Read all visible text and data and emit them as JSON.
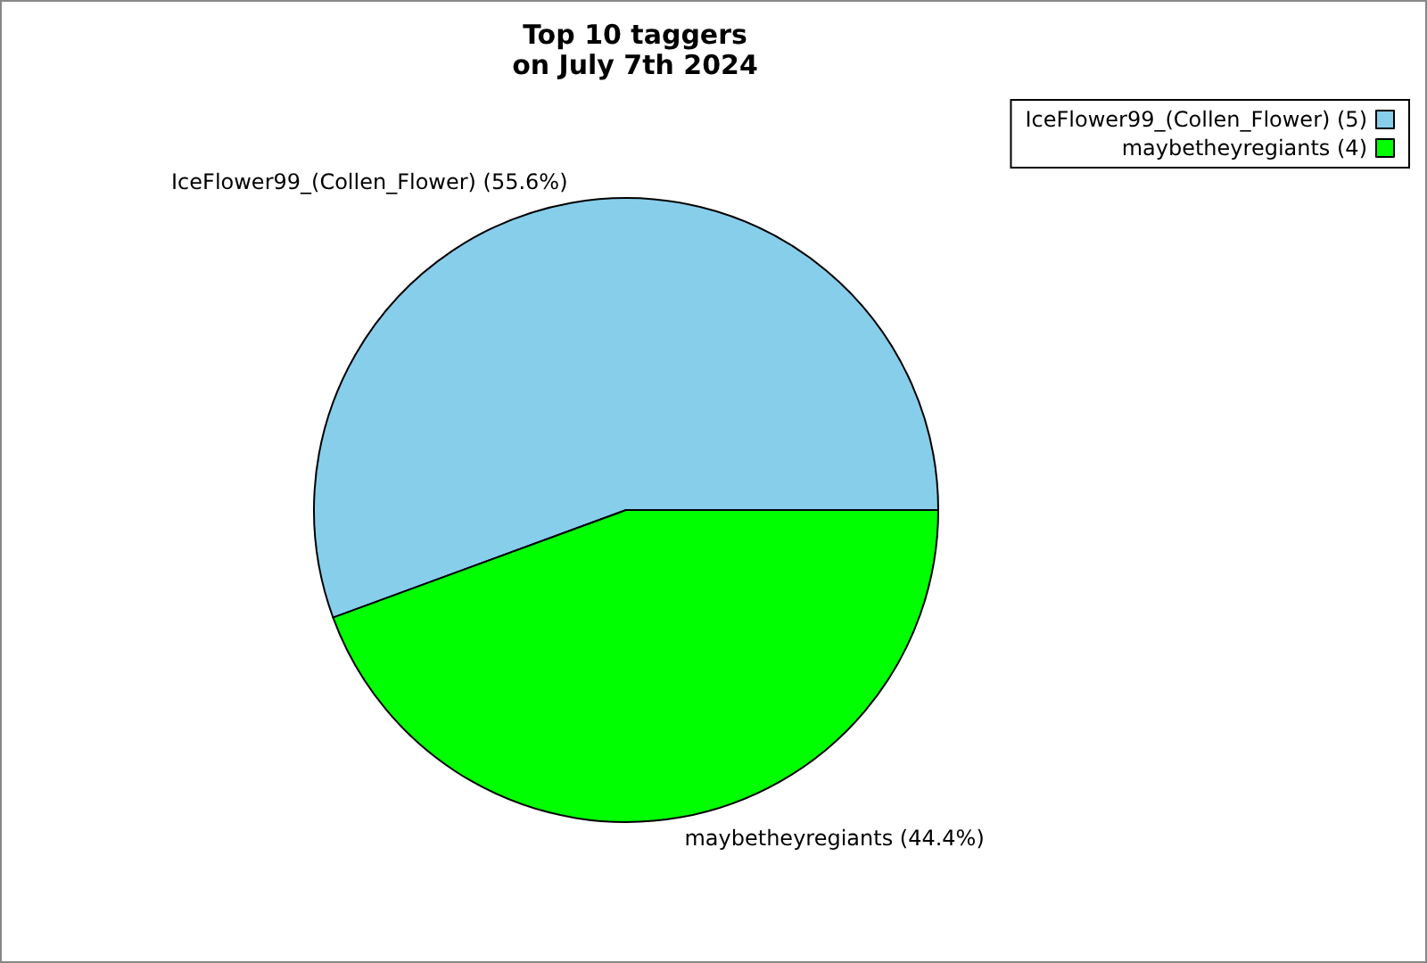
{
  "chart_data": {
    "type": "pie",
    "title": "Top 10 taggers\non July 7th 2024",
    "categories": [
      "IceFlower99_(Collen_Flower)",
      "maybetheyregiants"
    ],
    "values": [
      55.6,
      44.4
    ],
    "value_labels": [
      "(55.6%)",
      "(44.4%)"
    ],
    "annotations": [
      "(5)",
      "(4)"
    ],
    "colors": [
      "#87ceeb",
      "#00ff00"
    ],
    "legend": "top right"
  }
}
